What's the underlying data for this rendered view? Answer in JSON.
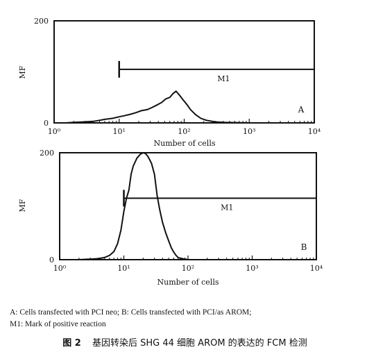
{
  "chart_data": [
    {
      "type": "line",
      "panel_label": "A",
      "ylabel": "MF",
      "xlabel": "Number of cells",
      "xscale": "log",
      "xlim": [
        1,
        10000
      ],
      "ylim": [
        0,
        200
      ],
      "y_ticks": [
        "0",
        "200"
      ],
      "x_ticks": [
        {
          "value": 1,
          "label": "10⁰"
        },
        {
          "value": 10,
          "label": "10¹"
        },
        {
          "value": 100,
          "label": "10²"
        },
        {
          "value": 1000,
          "label": "10³"
        },
        {
          "value": 10000,
          "label": "10⁴"
        }
      ],
      "marker": {
        "label": "M1",
        "x_start": 10,
        "x_end": 10000,
        "y": 105
      },
      "series": [
        {
          "x": [
            1.0,
            1.5,
            2.0,
            3.0,
            4.0,
            5.0,
            6.0,
            8.0,
            10.0,
            12.0,
            15.0,
            18.0,
            22.0,
            27.0,
            32.0,
            38.0,
            45.0,
            52.0,
            60.0,
            68.0,
            75.0,
            85.0,
            95.0,
            110.0,
            125.0,
            150.0,
            180.0,
            220.0,
            300.0,
            400.0,
            1000.0,
            10000.0
          ],
          "y": [
            0,
            0,
            1,
            2,
            3,
            5,
            7,
            9,
            12,
            14,
            17,
            20,
            24,
            26,
            30,
            35,
            40,
            47,
            50,
            58,
            62,
            54,
            46,
            36,
            26,
            16,
            9,
            5,
            2,
            1,
            0,
            0
          ]
        }
      ]
    },
    {
      "type": "line",
      "panel_label": "B",
      "ylabel": "MF",
      "xlabel": "Number of cells",
      "xscale": "log",
      "xlim": [
        1,
        10000
      ],
      "ylim": [
        0,
        200
      ],
      "y_ticks": [
        "0",
        "200"
      ],
      "x_ticks": [
        {
          "value": 1,
          "label": "10⁰"
        },
        {
          "value": 10,
          "label": "10¹"
        },
        {
          "value": 100,
          "label": "10²"
        },
        {
          "value": 1000,
          "label": "10³"
        },
        {
          "value": 10000,
          "label": "10⁴"
        }
      ],
      "marker": {
        "label": "M1",
        "x_start": 10,
        "x_end": 10000,
        "y": 115
      },
      "series": [
        {
          "x": [
            1.0,
            2.0,
            3.0,
            4.0,
            5.0,
            6.0,
            7.0,
            8.0,
            9.0,
            10.0,
            11.0,
            12.0,
            13.0,
            14.0,
            16.0,
            18.0,
            20.0,
            22.0,
            24.0,
            27.0,
            30.0,
            33.0,
            36.0,
            40.0,
            45.0,
            50.0,
            55.0,
            60.0,
            65.0,
            70.0,
            80.0,
            90.0,
            100.0,
            200.0,
            10000.0
          ],
          "y": [
            0,
            0,
            1,
            2,
            4,
            8,
            15,
            30,
            55,
            90,
            115,
            130,
            160,
            175,
            190,
            197,
            200,
            198,
            192,
            180,
            160,
            120,
            95,
            70,
            50,
            35,
            22,
            14,
            8,
            4,
            2,
            1,
            0,
            0,
            0
          ]
        }
      ]
    }
  ],
  "caption": {
    "line1": "A: Cells transfected with PCI neo; B: Cells transfected with PCI/as AROM;",
    "line2": "M1: Mark of positive reaction",
    "figure_number": "图 2",
    "figure_title": "基因转染后 SHG 44 细胞 AROM 的表达的 FCM 检测"
  }
}
